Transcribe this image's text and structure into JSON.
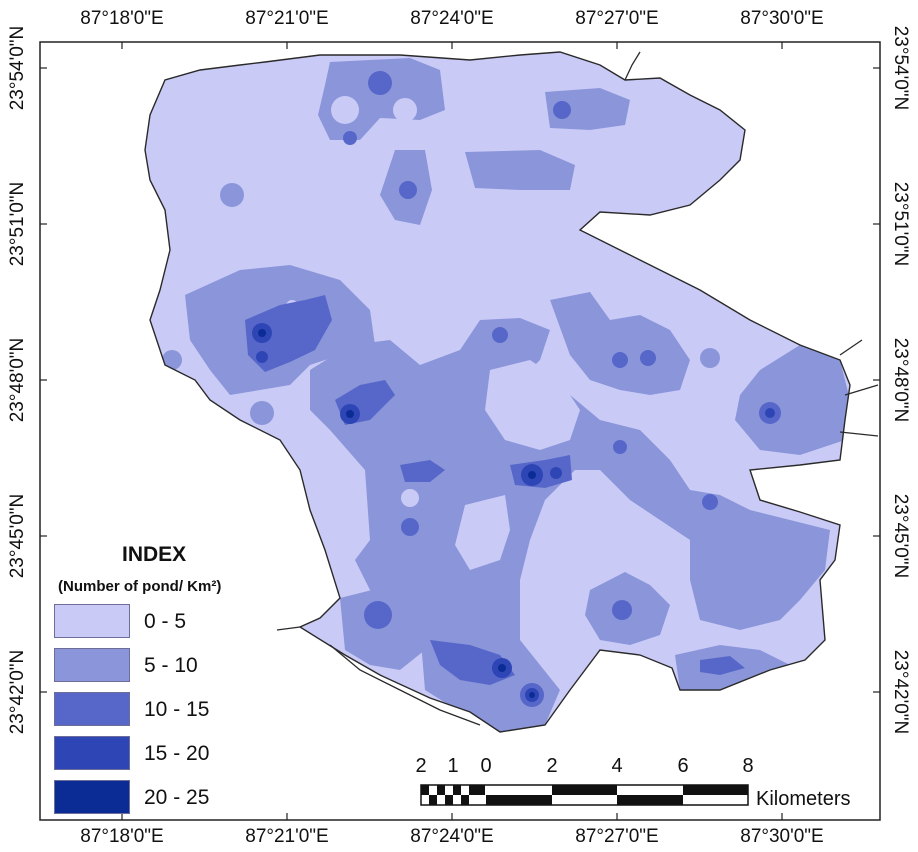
{
  "map": {
    "x_ticks": [
      "87°18'0\"E",
      "87°21'0\"E",
      "87°24'0\"E",
      "87°27'0\"E",
      "87°30'0\"E"
    ],
    "y_ticks": [
      "23°54'0\"N",
      "23°51'0\"N",
      "23°48'0\"N",
      "23°45'0\"N",
      "23°42'0\"N"
    ]
  },
  "legend": {
    "title": "INDEX",
    "subtitle": "(Number of pond/ Km²)",
    "classes": [
      {
        "label": "0 - 5",
        "color": "#cacaf7"
      },
      {
        "label": "5 - 10",
        "color": "#8a96d9"
      },
      {
        "label": "10 - 15",
        "color": "#5767c9"
      },
      {
        "label": "15 - 20",
        "color": "#2e46b5"
      },
      {
        "label": "20 - 25",
        "color": "#0c2c95"
      }
    ]
  },
  "scale_bar": {
    "labels": [
      "2",
      "1",
      "0",
      "2",
      "4",
      "6",
      "8"
    ],
    "unit": "Kilometers"
  }
}
